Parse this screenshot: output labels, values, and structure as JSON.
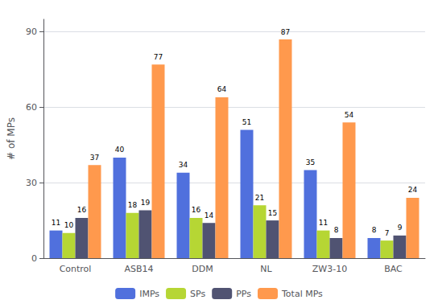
{
  "chart_data": {
    "type": "bar",
    "categories": [
      "Control",
      "ASB14",
      "DDM",
      "NL",
      "ZW3-10",
      "BAC"
    ],
    "series": [
      {
        "name": "IMPs",
        "values": [
          11,
          40,
          34,
          51,
          35,
          8
        ]
      },
      {
        "name": "SPs",
        "values": [
          10,
          18,
          16,
          21,
          11,
          7
        ]
      },
      {
        "name": "PPs",
        "values": [
          16,
          19,
          14,
          15,
          8,
          9
        ]
      },
      {
        "name": "Total MPs",
        "values": [
          37,
          77,
          64,
          87,
          54,
          24
        ]
      }
    ],
    "ylabel": "# of MPs",
    "ylim": [
      0,
      95
    ],
    "yticks": [
      0,
      30,
      60,
      90
    ],
    "grid": true,
    "legend": "bottom",
    "data_labels": true
  }
}
